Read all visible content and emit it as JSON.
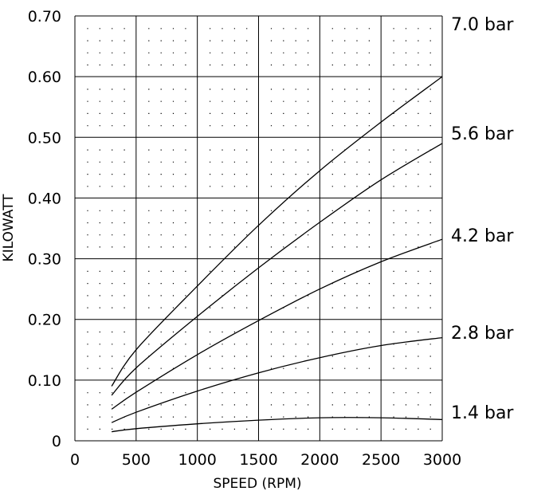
{
  "chart_data": {
    "type": "line",
    "title": "",
    "xlabel": "SPEED (RPM)",
    "ylabel": "KILOWATT",
    "xlim": [
      0,
      3000
    ],
    "ylim": [
      0,
      0.7
    ],
    "xticks": [
      "0",
      "500",
      "1000",
      "1500",
      "2000",
      "2500",
      "3000"
    ],
    "yticks": [
      "0",
      "0.10",
      "0.20",
      "0.30",
      "0.40",
      "0.50",
      "0.60",
      "0.70"
    ],
    "grid": true,
    "legend": "right",
    "x": [
      300,
      500,
      1000,
      1500,
      2000,
      2500,
      3000
    ],
    "series": [
      {
        "name": "7.0 bar",
        "values": [
          0.09,
          0.15,
          0.255,
          0.355,
          0.445,
          0.525,
          0.6
        ]
      },
      {
        "name": "5.6 bar",
        "values": [
          0.075,
          0.12,
          0.205,
          0.285,
          0.36,
          0.43,
          0.49
        ]
      },
      {
        "name": "4.2 bar",
        "values": [
          0.052,
          0.08,
          0.142,
          0.198,
          0.25,
          0.295,
          0.332
        ]
      },
      {
        "name": "2.8 bar",
        "values": [
          0.03,
          0.047,
          0.082,
          0.112,
          0.137,
          0.157,
          0.17
        ]
      },
      {
        "name": "1.4 bar",
        "values": [
          0.015,
          0.02,
          0.028,
          0.034,
          0.038,
          0.038,
          0.035
        ]
      }
    ],
    "colors": {
      "line": "#000000",
      "grid": "#000000",
      "background": "#ffffff"
    }
  }
}
